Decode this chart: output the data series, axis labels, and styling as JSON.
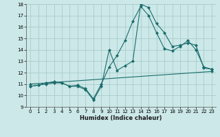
{
  "xlabel": "Humidex (Indice chaleur)",
  "background_color": "#cce8e8",
  "line_color": "#1a6b6b",
  "grid_color": "#aacccc",
  "xmin": -0.5,
  "xmax": 23.5,
  "ymin": 9,
  "ymax": 18,
  "x_ticks": [
    0,
    1,
    2,
    3,
    4,
    5,
    6,
    7,
    8,
    9,
    10,
    11,
    12,
    13,
    14,
    15,
    16,
    17,
    18,
    19,
    20,
    21,
    22,
    23
  ],
  "y_ticks": [
    9,
    10,
    11,
    12,
    13,
    14,
    15,
    16,
    17,
    18
  ],
  "series1_x": [
    0,
    1,
    2,
    3,
    4,
    5,
    6,
    7,
    8,
    9,
    10,
    11,
    12,
    13,
    14,
    15,
    16,
    17,
    18,
    19,
    20,
    21,
    22,
    23
  ],
  "series1_y": [
    10.8,
    10.9,
    11.1,
    11.2,
    11.1,
    10.8,
    10.8,
    10.5,
    9.6,
    10.8,
    14.0,
    12.2,
    12.6,
    13.0,
    18.0,
    17.7,
    16.3,
    15.5,
    14.3,
    14.4,
    14.6,
    14.4,
    12.4,
    12.3
  ],
  "series2_x": [
    0,
    1,
    2,
    3,
    4,
    5,
    6,
    7,
    8,
    9,
    10,
    11,
    12,
    13,
    14,
    15,
    16,
    17,
    18,
    19,
    20,
    21,
    22,
    23
  ],
  "series2_y": [
    10.8,
    10.9,
    11.0,
    11.1,
    11.1,
    10.8,
    10.9,
    10.6,
    9.7,
    11.0,
    12.5,
    13.5,
    14.8,
    16.5,
    17.8,
    17.0,
    15.5,
    14.1,
    13.9,
    14.3,
    14.8,
    14.0,
    12.5,
    12.3
  ],
  "series3_x": [
    0,
    23
  ],
  "series3_y": [
    11.0,
    12.1
  ]
}
